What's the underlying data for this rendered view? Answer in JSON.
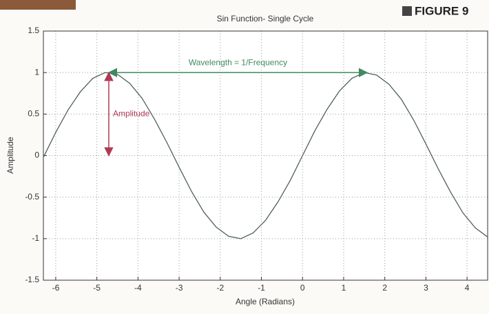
{
  "chart_data": {
    "type": "line",
    "title": "Sin Function- Single Cycle",
    "figure_label": "FIGURE 9",
    "x_label": "Angle (Radians)",
    "y_label": "Amplitude",
    "x": [
      -6.3,
      -6.0,
      -5.7,
      -5.4,
      -5.1,
      -4.8,
      -4.5,
      -4.2,
      -3.9,
      -3.6,
      -3.3,
      -3.0,
      -2.7,
      -2.4,
      -2.1,
      -1.8,
      -1.5,
      -1.2,
      -0.9,
      -0.6,
      -0.3,
      0,
      0.3,
      0.6,
      0.9,
      1.2,
      1.5,
      1.8,
      2.1,
      2.4,
      2.7,
      3.0,
      3.3,
      3.6,
      3.9,
      4.2,
      4.5
    ],
    "series": [
      {
        "color": "#4f5f57",
        "values": [
          -0.02,
          0.28,
          0.55,
          0.77,
          0.93,
          1.0,
          0.98,
          0.87,
          0.69,
          0.44,
          0.16,
          -0.14,
          -0.43,
          -0.68,
          -0.86,
          -0.97,
          -1.0,
          -0.93,
          -0.78,
          -0.56,
          -0.3,
          0,
          0.3,
          0.56,
          0.78,
          0.93,
          1.0,
          0.97,
          0.86,
          0.68,
          0.43,
          0.14,
          -0.16,
          -0.44,
          -0.69,
          -0.87,
          -0.98
        ]
      }
    ],
    "xlim": [
      -6.3,
      4.5
    ],
    "ylim": [
      -1.5,
      1.5
    ],
    "xticks": [
      -6,
      -5,
      -4,
      -3,
      -2,
      -1,
      0,
      1,
      2,
      3,
      4
    ],
    "yticks": [
      -1.5,
      -1,
      -0.5,
      0,
      0.5,
      1,
      1.5
    ],
    "grid": true,
    "annotations": [
      {
        "text": "Wavelength = 1/Frequency",
        "color": "#3f8a5e",
        "x": [
          -4.71,
          1.57
        ],
        "y": [
          1,
          1
        ]
      },
      {
        "text": "Amplitude",
        "color": "#b03a55",
        "x": [
          -4.71,
          -4.71
        ],
        "y": [
          0,
          1
        ]
      }
    ]
  }
}
